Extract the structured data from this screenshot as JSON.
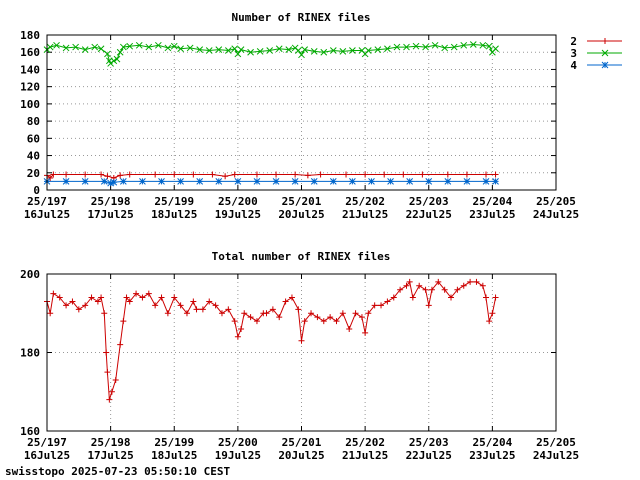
{
  "footer": "swisstopo 2025-07-23 05:50:10 CEST",
  "chart_data": [
    {
      "type": "line",
      "title": "Number of RINEX files",
      "xlabel": "",
      "ylabel": "",
      "x_ticks": [
        {
          "doy": 197,
          "label1": "25/197",
          "label2": "16Jul25"
        },
        {
          "doy": 198,
          "label1": "25/198",
          "label2": "17Jul25"
        },
        {
          "doy": 199,
          "label1": "25/199",
          "label2": "18Jul25"
        },
        {
          "doy": 200,
          "label1": "25/200",
          "label2": "19Jul25"
        },
        {
          "doy": 201,
          "label1": "25/201",
          "label2": "20Jul25"
        },
        {
          "doy": 202,
          "label1": "25/202",
          "label2": "21Jul25"
        },
        {
          "doy": 203,
          "label1": "25/203",
          "label2": "22Jul25"
        },
        {
          "doy": 204,
          "label1": "25/204",
          "label2": "23Jul25"
        },
        {
          "doy": 205,
          "label1": "25/205",
          "label2": "24Jul25"
        }
      ],
      "xlim": [
        197,
        205
      ],
      "ylim": [
        0,
        180
      ],
      "y_ticks": [
        0,
        20,
        40,
        60,
        80,
        100,
        120,
        140,
        160,
        180
      ],
      "grid": true,
      "legend_position": "right",
      "series": [
        {
          "name": "2",
          "color": "#cc0000",
          "marker": "plus",
          "points": [
            [
              197.0,
              17
            ],
            [
              197.05,
              14
            ],
            [
              197.1,
              18
            ],
            [
              197.3,
              18
            ],
            [
              197.6,
              18
            ],
            [
              197.85,
              18
            ],
            [
              197.95,
              16
            ],
            [
              198.05,
              14
            ],
            [
              198.15,
              17
            ],
            [
              198.3,
              18
            ],
            [
              198.7,
              18
            ],
            [
              199.0,
              18
            ],
            [
              199.3,
              18
            ],
            [
              199.6,
              18
            ],
            [
              199.8,
              16
            ],
            [
              199.95,
              18
            ],
            [
              200.3,
              18
            ],
            [
              200.6,
              18
            ],
            [
              200.9,
              18
            ],
            [
              201.1,
              17
            ],
            [
              201.3,
              18
            ],
            [
              201.7,
              18
            ],
            [
              202.0,
              18
            ],
            [
              202.3,
              18
            ],
            [
              202.6,
              18
            ],
            [
              202.9,
              18
            ],
            [
              203.3,
              18
            ],
            [
              203.6,
              18
            ],
            [
              203.9,
              18
            ],
            [
              204.05,
              18
            ]
          ]
        },
        {
          "name": "3",
          "color": "#00aa00",
          "marker": "cross",
          "points": [
            [
              197.0,
              163
            ],
            [
              197.05,
              166
            ],
            [
              197.15,
              168
            ],
            [
              197.3,
              165
            ],
            [
              197.45,
              166
            ],
            [
              197.6,
              163
            ],
            [
              197.75,
              166
            ],
            [
              197.85,
              164
            ],
            [
              197.95,
              158
            ],
            [
              197.98,
              150
            ],
            [
              198.0,
              147
            ],
            [
              198.05,
              150
            ],
            [
              198.1,
              152
            ],
            [
              198.15,
              160
            ],
            [
              198.2,
              166
            ],
            [
              198.3,
              167
            ],
            [
              198.45,
              168
            ],
            [
              198.6,
              166
            ],
            [
              198.75,
              168
            ],
            [
              198.9,
              165
            ],
            [
              199.0,
              167
            ],
            [
              199.1,
              164
            ],
            [
              199.25,
              165
            ],
            [
              199.4,
              163
            ],
            [
              199.55,
              162
            ],
            [
              199.7,
              163
            ],
            [
              199.85,
              162
            ],
            [
              199.95,
              164
            ],
            [
              200.0,
              158
            ],
            [
              200.05,
              163
            ],
            [
              200.2,
              160
            ],
            [
              200.35,
              161
            ],
            [
              200.5,
              162
            ],
            [
              200.65,
              164
            ],
            [
              200.8,
              163
            ],
            [
              200.9,
              165
            ],
            [
              200.95,
              162
            ],
            [
              201.0,
              157
            ],
            [
              201.05,
              163
            ],
            [
              201.2,
              161
            ],
            [
              201.35,
              160
            ],
            [
              201.5,
              162
            ],
            [
              201.65,
              161
            ],
            [
              201.8,
              162
            ],
            [
              201.95,
              162
            ],
            [
              202.0,
              158
            ],
            [
              202.05,
              162
            ],
            [
              202.2,
              163
            ],
            [
              202.35,
              164
            ],
            [
              202.5,
              166
            ],
            [
              202.65,
              166
            ],
            [
              202.8,
              167
            ],
            [
              202.95,
              166
            ],
            [
              203.1,
              168
            ],
            [
              203.25,
              165
            ],
            [
              203.4,
              166
            ],
            [
              203.55,
              168
            ],
            [
              203.7,
              169
            ],
            [
              203.85,
              168
            ],
            [
              203.95,
              167
            ],
            [
              204.0,
              160
            ],
            [
              204.05,
              164
            ]
          ]
        },
        {
          "name": "4",
          "color": "#0066cc",
          "marker": "star",
          "points": [
            [
              197.0,
              10
            ],
            [
              197.3,
              10
            ],
            [
              197.6,
              10
            ],
            [
              197.9,
              10
            ],
            [
              198.0,
              8
            ],
            [
              198.05,
              9
            ],
            [
              198.2,
              10
            ],
            [
              198.5,
              10
            ],
            [
              198.8,
              10
            ],
            [
              199.1,
              10
            ],
            [
              199.4,
              10
            ],
            [
              199.7,
              10
            ],
            [
              200.0,
              10
            ],
            [
              200.3,
              10
            ],
            [
              200.6,
              10
            ],
            [
              200.9,
              10
            ],
            [
              201.2,
              10
            ],
            [
              201.5,
              10
            ],
            [
              201.8,
              10
            ],
            [
              202.1,
              10
            ],
            [
              202.4,
              10
            ],
            [
              202.7,
              10
            ],
            [
              203.0,
              10
            ],
            [
              203.3,
              10
            ],
            [
              203.6,
              10
            ],
            [
              203.9,
              10
            ],
            [
              204.05,
              10
            ]
          ]
        }
      ]
    },
    {
      "type": "line",
      "title": "Total number of RINEX files",
      "xlabel": "",
      "ylabel": "",
      "x_ticks": [
        {
          "doy": 197,
          "label1": "25/197",
          "label2": "16Jul25"
        },
        {
          "doy": 198,
          "label1": "25/198",
          "label2": "17Jul25"
        },
        {
          "doy": 199,
          "label1": "25/199",
          "label2": "18Jul25"
        },
        {
          "doy": 200,
          "label1": "25/200",
          "label2": "19Jul25"
        },
        {
          "doy": 201,
          "label1": "25/201",
          "label2": "20Jul25"
        },
        {
          "doy": 202,
          "label1": "25/202",
          "label2": "21Jul25"
        },
        {
          "doy": 203,
          "label1": "25/203",
          "label2": "22Jul25"
        },
        {
          "doy": 204,
          "label1": "25/204",
          "label2": "23Jul25"
        },
        {
          "doy": 205,
          "label1": "25/205",
          "label2": "24Jul25"
        }
      ],
      "xlim": [
        197,
        205
      ],
      "ylim": [
        160,
        200
      ],
      "y_ticks": [
        160,
        180,
        200
      ],
      "grid": true,
      "series": [
        {
          "name": "",
          "color": "#cc0000",
          "marker": "plus",
          "points": [
            [
              197.0,
              193
            ],
            [
              197.05,
              190
            ],
            [
              197.1,
              195
            ],
            [
              197.2,
              194
            ],
            [
              197.3,
              192
            ],
            [
              197.4,
              193
            ],
            [
              197.5,
              191
            ],
            [
              197.6,
              192
            ],
            [
              197.7,
              194
            ],
            [
              197.8,
              193
            ],
            [
              197.85,
              194
            ],
            [
              197.9,
              190
            ],
            [
              197.93,
              180
            ],
            [
              197.95,
              175
            ],
            [
              197.98,
              168
            ],
            [
              198.02,
              170
            ],
            [
              198.08,
              173
            ],
            [
              198.15,
              182
            ],
            [
              198.2,
              188
            ],
            [
              198.25,
              194
            ],
            [
              198.3,
              193
            ],
            [
              198.4,
              195
            ],
            [
              198.5,
              194
            ],
            [
              198.6,
              195
            ],
            [
              198.7,
              192
            ],
            [
              198.8,
              194
            ],
            [
              198.9,
              190
            ],
            [
              199.0,
              194
            ],
            [
              199.1,
              192
            ],
            [
              199.2,
              190
            ],
            [
              199.3,
              193
            ],
            [
              199.35,
              191
            ],
            [
              199.45,
              191
            ],
            [
              199.55,
              193
            ],
            [
              199.65,
              192
            ],
            [
              199.75,
              190
            ],
            [
              199.85,
              191
            ],
            [
              199.95,
              188
            ],
            [
              200.0,
              184
            ],
            [
              200.05,
              186
            ],
            [
              200.1,
              190
            ],
            [
              200.2,
              189
            ],
            [
              200.3,
              188
            ],
            [
              200.4,
              190
            ],
            [
              200.45,
              190
            ],
            [
              200.55,
              191
            ],
            [
              200.65,
              189
            ],
            [
              200.75,
              193
            ],
            [
              200.85,
              194
            ],
            [
              200.95,
              191
            ],
            [
              201.0,
              183
            ],
            [
              201.05,
              188
            ],
            [
              201.15,
              190
            ],
            [
              201.25,
              189
            ],
            [
              201.35,
              188
            ],
            [
              201.45,
              189
            ],
            [
              201.55,
              188
            ],
            [
              201.65,
              190
            ],
            [
              201.75,
              186
            ],
            [
              201.85,
              190
            ],
            [
              201.95,
              189
            ],
            [
              202.0,
              185
            ],
            [
              202.05,
              190
            ],
            [
              202.15,
              192
            ],
            [
              202.25,
              192
            ],
            [
              202.35,
              193
            ],
            [
              202.45,
              194
            ],
            [
              202.55,
              196
            ],
            [
              202.65,
              197
            ],
            [
              202.7,
              198
            ],
            [
              202.75,
              194
            ],
            [
              202.85,
              197
            ],
            [
              202.95,
              196
            ],
            [
              203.0,
              192
            ],
            [
              203.05,
              196
            ],
            [
              203.15,
              198
            ],
            [
              203.25,
              196
            ],
            [
              203.35,
              194
            ],
            [
              203.45,
              196
            ],
            [
              203.55,
              197
            ],
            [
              203.65,
              198
            ],
            [
              203.75,
              198
            ],
            [
              203.85,
              197
            ],
            [
              203.9,
              194
            ],
            [
              203.95,
              188
            ],
            [
              204.0,
              190
            ],
            [
              204.05,
              194
            ]
          ]
        }
      ]
    }
  ]
}
